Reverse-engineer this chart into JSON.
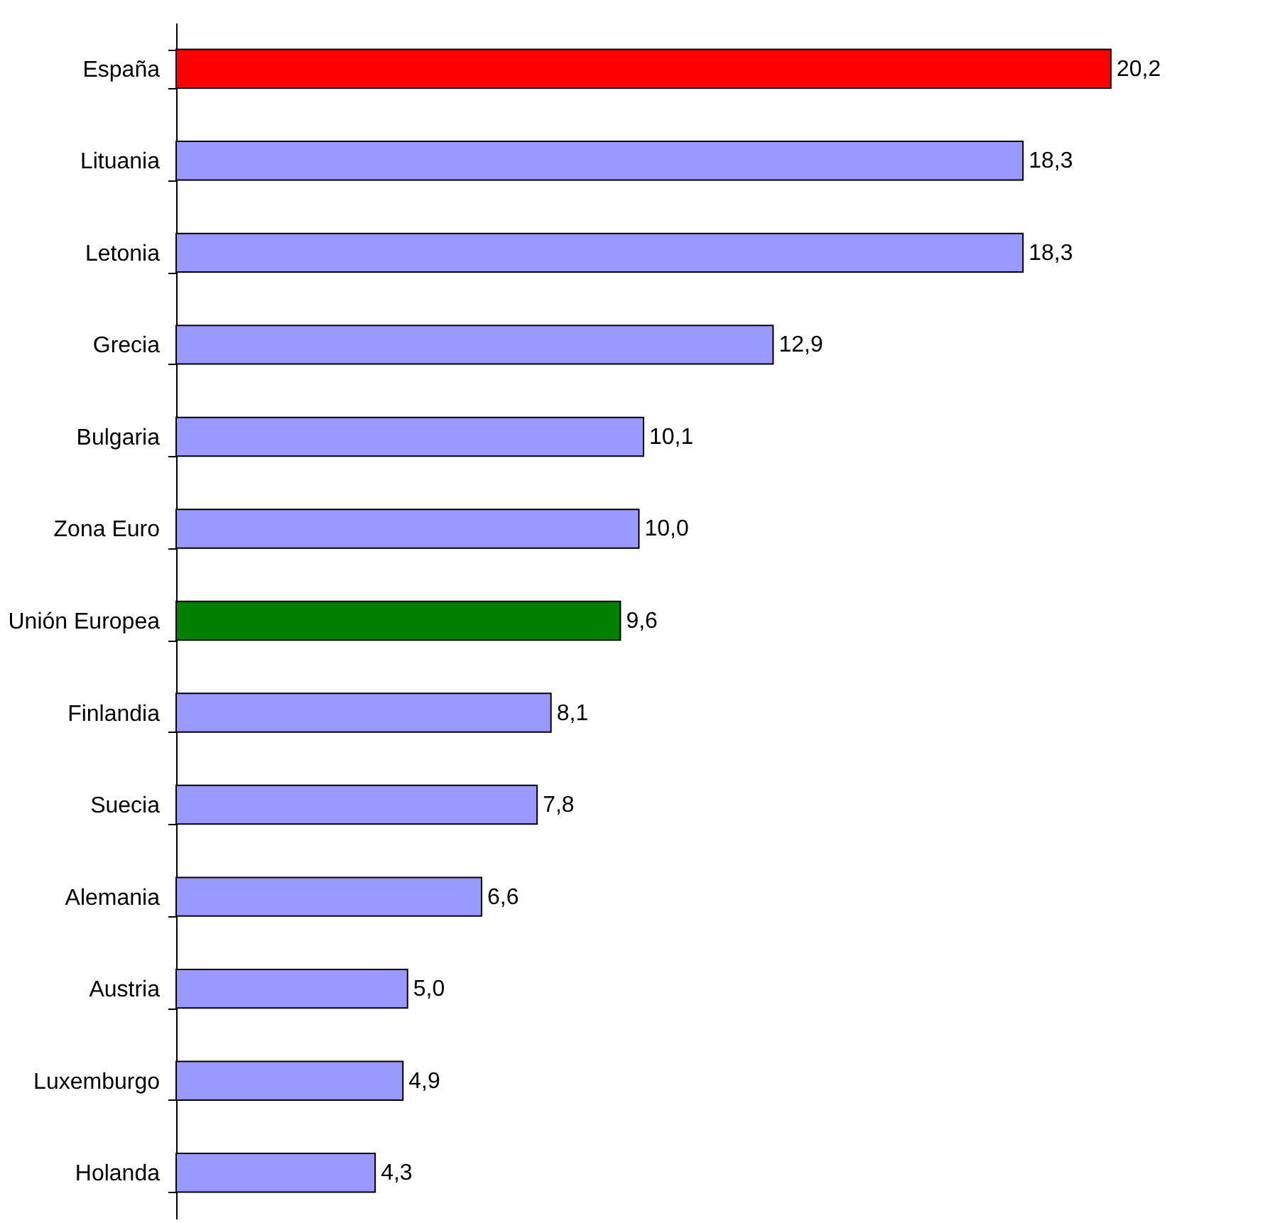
{
  "chart_data": {
    "type": "bar",
    "orientation": "horizontal",
    "categories": [
      "España",
      "Lituania",
      "Letonia",
      "Grecia",
      "Bulgaria",
      "Zona Euro",
      "Unión Europea",
      "Finlandia",
      "Suecia",
      "Alemania",
      "Austria",
      "Luxemburgo",
      "Holanda"
    ],
    "values": [
      20.2,
      18.3,
      18.3,
      12.9,
      10.1,
      10.0,
      9.6,
      8.1,
      7.8,
      6.6,
      5.0,
      4.9,
      4.3
    ],
    "colors": [
      "#ff0000",
      "#9999ff",
      "#9999ff",
      "#9999ff",
      "#9999ff",
      "#9999ff",
      "#008000",
      "#9999ff",
      "#9999ff",
      "#9999ff",
      "#9999ff",
      "#9999ff",
      "#9999ff"
    ],
    "value_labels": [
      "20,2",
      "18,3",
      "18,3",
      "12,9",
      "10,1",
      "10,0",
      "9,6",
      "8,1",
      "7,8",
      "6,6",
      "5,0",
      "4,9",
      "4,3"
    ],
    "grid": false
  }
}
